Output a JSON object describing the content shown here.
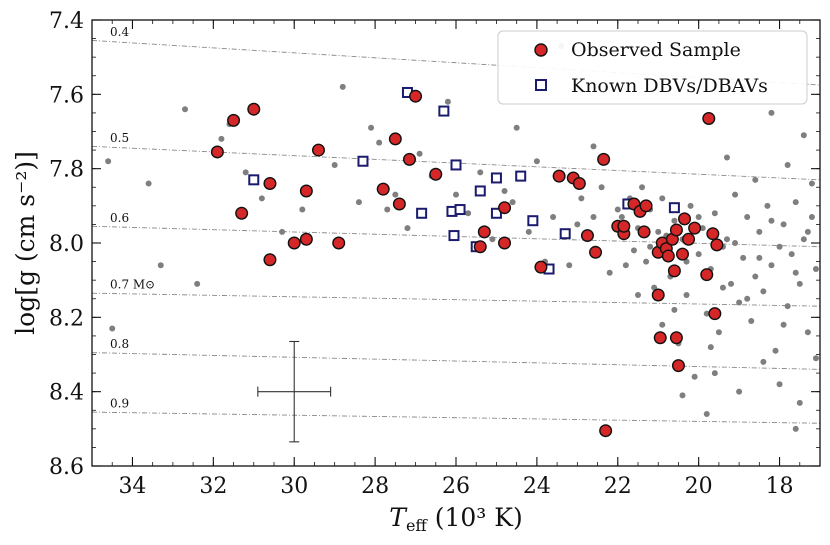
{
  "chart_data": {
    "type": "scatter",
    "x_axis": {
      "label_main": "T",
      "label_sub": "eff",
      "label_rest": " (10³ K)",
      "lim": [
        35,
        17
      ],
      "reversed": true,
      "ticks": [
        34,
        32,
        30,
        28,
        26,
        24,
        22,
        20,
        18
      ],
      "tick_labels": [
        "34",
        "32",
        "30",
        "28",
        "26",
        "24",
        "22",
        "20",
        "18"
      ],
      "minor_step": 0.5
    },
    "y_axis": {
      "label_main": "log[g (cm s⁻²)]",
      "lim": [
        7.4,
        8.6
      ],
      "reversed": true,
      "ticks": [
        7.4,
        7.6,
        7.8,
        8.0,
        8.2,
        8.4,
        8.6
      ],
      "tick_labels": [
        "7.4",
        "7.6",
        "7.8",
        "8.0",
        "8.2",
        "8.4",
        "8.6"
      ],
      "minor_step": 0.05
    },
    "mass_tracks": [
      {
        "label": "0.4",
        "start": [
          35,
          7.455
        ],
        "end": [
          17,
          7.575
        ]
      },
      {
        "label": "0.5",
        "start": [
          35,
          7.74
        ],
        "end": [
          17,
          7.83
        ]
      },
      {
        "label": "0.6",
        "start": [
          35,
          7.955
        ],
        "end": [
          17,
          8.01
        ]
      },
      {
        "label": "0.7 M⊙",
        "start": [
          35,
          8.135
        ],
        "end": [
          17,
          8.17
        ]
      },
      {
        "label": "0.8",
        "start": [
          35,
          8.295
        ],
        "end": [
          17,
          8.34
        ]
      },
      {
        "label": "0.9",
        "start": [
          35,
          8.455
        ],
        "end": [
          17,
          8.485
        ]
      }
    ],
    "error_bar": {
      "x": 30.0,
      "y": 8.4,
      "x_err": 0.9,
      "y_err": 0.135
    },
    "background_points": [
      [
        34.6,
        7.78
      ],
      [
        34.5,
        8.23
      ],
      [
        33.6,
        7.84
      ],
      [
        33.3,
        8.06
      ],
      [
        32.7,
        7.64
      ],
      [
        32.4,
        8.11
      ],
      [
        31.8,
        7.72
      ],
      [
        31.6,
        7.68
      ],
      [
        31.2,
        7.81
      ],
      [
        30.8,
        7.88
      ],
      [
        30.3,
        7.97
      ],
      [
        29.8,
        7.91
      ],
      [
        29.4,
        7.75
      ],
      [
        29.0,
        7.79
      ],
      [
        28.8,
        7.58
      ],
      [
        28.4,
        7.89
      ],
      [
        28.1,
        7.69
      ],
      [
        27.9,
        7.73
      ],
      [
        27.7,
        7.91
      ],
      [
        27.5,
        7.87
      ],
      [
        27.2,
        7.96
      ],
      [
        26.9,
        7.76
      ],
      [
        26.6,
        7.82
      ],
      [
        26.2,
        7.62
      ],
      [
        26.0,
        7.87
      ],
      [
        25.7,
        7.92
      ],
      [
        25.4,
        7.81
      ],
      [
        25.1,
        7.99
      ],
      [
        24.8,
        7.86
      ],
      [
        24.6,
        7.89
      ],
      [
        24.2,
        7.97
      ],
      [
        24.0,
        7.78
      ],
      [
        23.8,
        8.05
      ],
      [
        23.6,
        7.93
      ],
      [
        23.4,
        7.47
      ],
      [
        23.2,
        8.06
      ],
      [
        22.9,
        7.88
      ],
      [
        22.6,
        7.93
      ],
      [
        22.4,
        7.85
      ],
      [
        22.2,
        8.08
      ],
      [
        22.0,
        7.91
      ],
      [
        21.9,
        7.93
      ],
      [
        21.7,
        7.88
      ],
      [
        21.6,
        8.02
      ],
      [
        21.5,
        7.96
      ],
      [
        21.4,
        7.85
      ],
      [
        21.3,
        8.05
      ],
      [
        21.2,
        7.91
      ],
      [
        21.1,
        8.12
      ],
      [
        21.0,
        7.97
      ],
      [
        20.9,
        8.22
      ],
      [
        20.8,
        7.98
      ],
      [
        20.7,
        8.09
      ],
      [
        20.6,
        7.94
      ],
      [
        20.5,
        8.27
      ],
      [
        20.4,
        7.99
      ],
      [
        20.3,
        8.14
      ],
      [
        20.2,
        7.9
      ],
      [
        20.1,
        8.36
      ],
      [
        20.0,
        8.03
      ],
      [
        19.9,
        7.96
      ],
      [
        19.8,
        8.19
      ],
      [
        19.7,
        8.07
      ],
      [
        19.6,
        7.92
      ],
      [
        19.5,
        8.24
      ],
      [
        19.4,
        8.01
      ],
      [
        19.3,
        7.99
      ],
      [
        19.2,
        8.11
      ],
      [
        19.1,
        7.87
      ],
      [
        19.0,
        8.16
      ],
      [
        18.9,
        8.04
      ],
      [
        18.8,
        7.93
      ],
      [
        18.7,
        8.21
      ],
      [
        18.6,
        8.09
      ],
      [
        18.5,
        7.97
      ],
      [
        18.4,
        8.13
      ],
      [
        18.3,
        7.9
      ],
      [
        18.2,
        8.06
      ],
      [
        18.1,
        8.29
      ],
      [
        18.0,
        8.01
      ],
      [
        17.9,
        7.95
      ],
      [
        17.8,
        8.17
      ],
      [
        17.7,
        8.03
      ],
      [
        17.6,
        7.89
      ],
      [
        17.5,
        8.11
      ],
      [
        17.4,
        7.99
      ],
      [
        17.3,
        8.24
      ],
      [
        17.2,
        7.93
      ],
      [
        17.1,
        8.07
      ],
      [
        21.8,
        8.06
      ],
      [
        21.5,
        8.14
      ],
      [
        21.2,
        8.01
      ],
      [
        20.9,
        7.88
      ],
      [
        20.6,
        8.18
      ],
      [
        20.3,
        8.05
      ],
      [
        20.0,
        7.93
      ],
      [
        19.7,
        8.28
      ],
      [
        19.4,
        8.12
      ],
      [
        19.1,
        8.0
      ],
      [
        18.8,
        8.15
      ],
      [
        18.5,
        8.04
      ],
      [
        18.2,
        7.94
      ],
      [
        17.9,
        8.22
      ],
      [
        17.6,
        8.08
      ],
      [
        17.3,
        7.97
      ],
      [
        17.1,
        8.31
      ],
      [
        18.4,
        8.32
      ],
      [
        18.0,
        8.38
      ],
      [
        17.5,
        8.43
      ],
      [
        19.0,
        8.4
      ],
      [
        19.6,
        8.35
      ],
      [
        20.4,
        8.41
      ],
      [
        17.2,
        7.84
      ],
      [
        17.8,
        7.79
      ],
      [
        18.6,
        7.83
      ],
      [
        19.3,
        7.77
      ],
      [
        17.4,
        7.71
      ],
      [
        18.2,
        7.65
      ],
      [
        18.9,
        7.58
      ],
      [
        17.6,
        8.5
      ],
      [
        19.8,
        8.46
      ],
      [
        22.6,
        7.74
      ],
      [
        23.0,
        7.95
      ],
      [
        24.5,
        7.69
      ]
    ],
    "series": [
      {
        "name": "Observed Sample",
        "marker": "circle",
        "color": "#d62728",
        "edge": "#111111",
        "points": [
          [
            31.9,
            7.755
          ],
          [
            31.5,
            7.67
          ],
          [
            31.0,
            7.64
          ],
          [
            30.6,
            7.84
          ],
          [
            31.3,
            7.92
          ],
          [
            29.7,
            7.86
          ],
          [
            29.4,
            7.75
          ],
          [
            29.7,
            7.99
          ],
          [
            30.0,
            8.0
          ],
          [
            30.6,
            8.045
          ],
          [
            28.9,
            8.0
          ],
          [
            27.8,
            7.855
          ],
          [
            27.5,
            7.72
          ],
          [
            27.4,
            7.895
          ],
          [
            27.15,
            7.775
          ],
          [
            27.0,
            7.605
          ],
          [
            26.5,
            7.815
          ],
          [
            25.3,
            7.97
          ],
          [
            25.4,
            8.01
          ],
          [
            24.8,
            7.905
          ],
          [
            24.8,
            8.0
          ],
          [
            23.9,
            8.065
          ],
          [
            23.45,
            7.82
          ],
          [
            23.1,
            7.825
          ],
          [
            22.95,
            7.84
          ],
          [
            22.75,
            7.98
          ],
          [
            22.55,
            8.025
          ],
          [
            22.35,
            7.775
          ],
          [
            22.0,
            7.955
          ],
          [
            21.85,
            7.975
          ],
          [
            21.85,
            7.955
          ],
          [
            21.6,
            7.895
          ],
          [
            21.45,
            7.915
          ],
          [
            21.35,
            7.97
          ],
          [
            21.3,
            7.9
          ],
          [
            21.0,
            8.025
          ],
          [
            20.9,
            8.0
          ],
          [
            20.8,
            8.015
          ],
          [
            20.75,
            8.035
          ],
          [
            20.65,
            7.99
          ],
          [
            20.55,
            7.965
          ],
          [
            20.4,
            8.03
          ],
          [
            20.25,
            7.99
          ],
          [
            20.1,
            7.96
          ],
          [
            19.8,
            8.085
          ],
          [
            19.65,
            7.975
          ],
          [
            19.55,
            8.005
          ],
          [
            19.75,
            7.665
          ],
          [
            19.6,
            8.19
          ],
          [
            20.35,
            7.935
          ],
          [
            21.0,
            8.14
          ],
          [
            20.95,
            8.255
          ],
          [
            20.55,
            8.255
          ],
          [
            20.5,
            8.33
          ],
          [
            20.6,
            8.075
          ],
          [
            22.3,
            8.505
          ]
        ]
      },
      {
        "name": "Known DBVs/DBAVs",
        "marker": "square",
        "color": "#ffffff",
        "edge": "#1a1a6e",
        "points": [
          [
            31.0,
            7.83
          ],
          [
            28.3,
            7.78
          ],
          [
            27.2,
            7.595
          ],
          [
            26.85,
            7.92
          ],
          [
            26.3,
            7.645
          ],
          [
            26.0,
            7.79
          ],
          [
            26.1,
            7.915
          ],
          [
            26.05,
            7.98
          ],
          [
            25.9,
            7.91
          ],
          [
            25.5,
            8.01
          ],
          [
            25.4,
            7.86
          ],
          [
            25.0,
            7.825
          ],
          [
            25.0,
            7.92
          ],
          [
            24.4,
            7.82
          ],
          [
            24.1,
            7.94
          ],
          [
            23.7,
            8.07
          ],
          [
            23.3,
            7.975
          ],
          [
            21.75,
            7.895
          ],
          [
            20.6,
            7.905
          ]
        ]
      }
    ],
    "legend": {
      "placement": "top-right",
      "entries": [
        "Observed Sample",
        "Known DBVs/DBAVs"
      ]
    }
  }
}
